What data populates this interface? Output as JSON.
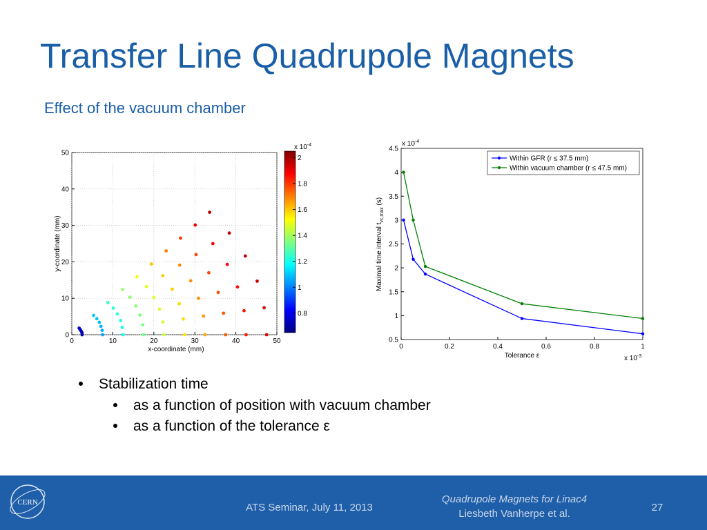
{
  "title": "Transfer Line Quadrupole Magnets",
  "subtitle": "Effect of the vacuum chamber",
  "chart_data": [
    {
      "type": "scatter",
      "xlabel": "x-coordinate (mm)",
      "ylabel": "y-coordinate (mm)",
      "x": [
        2.5,
        2.5,
        2.4,
        2.2,
        2.0,
        1.8,
        7.5,
        7.4,
        7.1,
        6.7,
        6.1,
        5.3,
        12.5,
        12.3,
        11.9,
        11.1,
        10.1,
        8.8,
        17.5,
        17.3,
        16.6,
        15.6,
        14.2,
        12.4,
        22.5,
        22.2,
        21.4,
        20.0,
        18.2,
        15.9,
        27.5,
        27.2,
        26.2,
        24.5,
        22.2,
        19.4,
        32.5,
        32.1,
        30.9,
        29.0,
        26.3,
        23.0,
        37.5,
        37.0,
        35.7,
        33.4,
        30.3,
        26.5,
        42.5,
        42.0,
        40.4,
        37.9,
        34.4,
        30.1,
        47.5,
        46.9,
        45.2,
        42.3,
        38.4,
        33.6
      ],
      "y": [
        0,
        0.4,
        0.8,
        1.1,
        1.5,
        1.8,
        0,
        1.2,
        2.3,
        3.4,
        4.4,
        5.3,
        0,
        2.0,
        3.9,
        5.7,
        7.3,
        8.8,
        0,
        2.7,
        5.4,
        7.9,
        10.3,
        12.4,
        0,
        3.5,
        7.0,
        10.2,
        13.2,
        15.9,
        0,
        4.3,
        8.5,
        12.5,
        16.2,
        19.4,
        0,
        5.1,
        10.0,
        14.8,
        19.1,
        23.0,
        0,
        5.9,
        11.6,
        17.0,
        22.0,
        26.5,
        0,
        6.6,
        13.1,
        19.3,
        25.0,
        30.1,
        0,
        7.4,
        14.7,
        21.6,
        27.9,
        33.6
      ],
      "values": [
        0.7,
        0.71,
        0.72,
        0.73,
        0.74,
        0.75,
        1.05,
        1.06,
        1.07,
        1.08,
        1.09,
        1.1,
        1.2,
        1.21,
        1.22,
        1.23,
        1.24,
        1.25,
        1.33,
        1.34,
        1.35,
        1.36,
        1.37,
        1.38,
        1.45,
        1.46,
        1.47,
        1.48,
        1.49,
        1.5,
        1.56,
        1.57,
        1.58,
        1.59,
        1.6,
        1.61,
        1.65,
        1.66,
        1.67,
        1.68,
        1.69,
        1.7,
        1.75,
        1.76,
        1.77,
        1.78,
        1.79,
        1.8,
        1.84,
        1.85,
        1.86,
        1.87,
        1.88,
        1.89,
        1.92,
        1.93,
        1.94,
        1.95,
        1.96,
        1.97
      ],
      "colormap": "jet",
      "clim": [
        0.65,
        2.05
      ],
      "cticks": [
        0.8,
        1,
        1.2,
        1.4,
        1.6,
        1.8,
        2
      ],
      "colorbar_label": "x 10",
      "colorbar_exponent": "-4",
      "xlim": [
        0,
        50
      ],
      "ylim": [
        0,
        50
      ],
      "xticks": [
        0,
        10,
        20,
        30,
        40,
        50
      ],
      "yticks": [
        0,
        10,
        20,
        30,
        40,
        50
      ],
      "grid": true
    },
    {
      "type": "line",
      "xlabel": "Tolerance ε",
      "ylabel": "Maximal time interval  t",
      "ylabel_subscript": "vc,max",
      "ylabel_suffix": " (s)",
      "x": [
        0.01,
        0.05,
        0.1,
        0.5,
        1
      ],
      "series": [
        {
          "name": "Within GFR (r ≤ 37.5 mm)",
          "color": "#0000ff",
          "values": [
            3,
            2.18,
            1.87,
            0.94,
            0.62
          ]
        },
        {
          "name": "Within vacuum chamber (r ≤ 47.5 mm)",
          "color": "#008000",
          "values": [
            4,
            3,
            2.03,
            1.25,
            0.94
          ]
        }
      ],
      "xlim": [
        0,
        1
      ],
      "ylim": [
        0.5,
        4.5
      ],
      "xticks": [
        0,
        0.2,
        0.4,
        0.6,
        0.8,
        1
      ],
      "yticks": [
        0.5,
        1,
        1.5,
        2,
        2.5,
        3,
        3.5,
        4,
        4.5
      ],
      "x_multiplier": "x 10",
      "x_exponent": "-3",
      "y_multiplier": "x 10",
      "y_exponent": "-4",
      "legend": "upper right",
      "grid": false
    }
  ],
  "bullets": [
    {
      "text": "Stabilization time",
      "children": [
        "as a function of position with vacuum chamber",
        "as a function of the tolerance ε"
      ]
    }
  ],
  "footer": {
    "logo": "CERN",
    "event": "ATS Seminar, July 11, 2013",
    "talk": "Quadrupole Magnets for Linac4",
    "author": "Liesbeth Vanherpe et al.",
    "page": 27
  }
}
